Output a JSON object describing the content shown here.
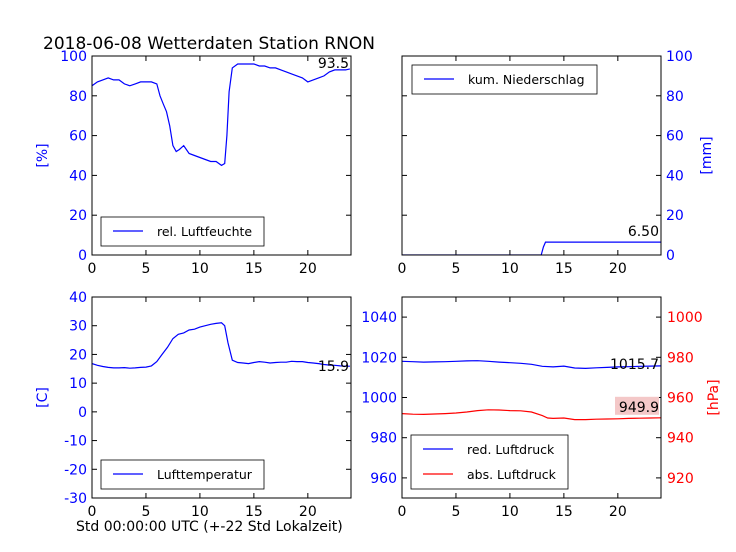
{
  "figure": {
    "title": "2018-06-08 Wetterdaten Station RNON",
    "xlabel": "Std 00:00:00 UTC (+-22 Std Lokalzeit)"
  },
  "colors": {
    "blue": "#0000ff",
    "red": "#ff0000",
    "black": "#000000"
  },
  "chart_data": [
    {
      "type": "line",
      "id": "humidity",
      "ylabel": "[%]",
      "xlim": [
        0,
        24
      ],
      "ylim": [
        0,
        100
      ],
      "xticks": [
        0,
        5,
        10,
        15,
        20
      ],
      "yticks": [
        0,
        20,
        40,
        60,
        80,
        100
      ],
      "legend_position": "lower-center",
      "last_value_label": "93.5",
      "series": [
        {
          "name": "rel. Luftfeuchte",
          "color": "#0000ff",
          "x": [
            0,
            0.5,
            1,
            1.5,
            2,
            2.5,
            3,
            3.5,
            4,
            4.5,
            5,
            5.5,
            6,
            6.3,
            6.6,
            6.9,
            7.2,
            7.5,
            7.8,
            8.1,
            8.5,
            9,
            9.5,
            10,
            10.5,
            11,
            11.5,
            12,
            12.3,
            12.5,
            12.7,
            13,
            13.5,
            14,
            14.5,
            15,
            15.5,
            16,
            16.5,
            17,
            17.5,
            18,
            18.5,
            19,
            19.5,
            20,
            20.5,
            21,
            21.5,
            22,
            22.5,
            23,
            23.5,
            23.9
          ],
          "y": [
            85,
            87,
            88,
            89,
            88,
            88,
            86,
            85,
            86,
            87,
            87,
            87,
            86,
            80,
            76,
            72,
            65,
            55,
            52,
            53,
            55,
            51,
            50,
            49,
            48,
            47,
            47,
            45,
            46,
            60,
            82,
            94,
            96,
            96,
            96,
            96,
            95,
            95,
            94,
            94,
            93,
            92,
            91,
            90,
            89,
            87,
            88,
            89,
            90,
            92,
            93,
            93,
            93,
            93.5
          ]
        }
      ]
    },
    {
      "type": "line",
      "id": "precip",
      "ylabel": "[mm]",
      "xlim": [
        0,
        24
      ],
      "ylim": [
        0,
        100
      ],
      "xticks": [
        0,
        5,
        10,
        15,
        20
      ],
      "yticks": [
        0,
        20,
        40,
        60,
        80,
        100
      ],
      "legend_position": "upper-center",
      "last_value_label": "6.50",
      "series": [
        {
          "name": "kum. Niederschlag",
          "color": "#0000ff",
          "x": [
            0,
            12.9,
            13.1,
            13.3,
            24
          ],
          "y": [
            0,
            0,
            4,
            6.5,
            6.5
          ]
        }
      ]
    },
    {
      "type": "line",
      "id": "temperature",
      "ylabel": "[C]",
      "xlim": [
        0,
        24
      ],
      "ylim": [
        -30,
        40
      ],
      "xticks": [
        0,
        5,
        10,
        15,
        20
      ],
      "yticks": [
        -30,
        -20,
        -10,
        0,
        10,
        20,
        30,
        40
      ],
      "legend_position": "lower-center",
      "last_value_label": "15.9",
      "series": [
        {
          "name": "Lufttemperatur",
          "color": "#0000ff",
          "x": [
            0,
            0.5,
            1,
            1.5,
            2,
            2.5,
            3,
            3.5,
            4,
            4.5,
            5,
            5.5,
            6,
            6.5,
            7,
            7.5,
            8,
            8.5,
            9,
            9.5,
            10,
            10.5,
            11,
            11.5,
            12,
            12.3,
            12.6,
            13,
            13.5,
            14,
            14.5,
            15,
            15.5,
            16,
            16.5,
            17,
            17.5,
            18,
            18.5,
            19,
            19.5,
            20,
            20.5,
            21,
            21.5,
            22,
            22.5,
            23,
            23.5,
            23.9
          ],
          "y": [
            16.8,
            16.2,
            15.8,
            15.5,
            15.3,
            15.3,
            15.4,
            15.2,
            15.3,
            15.5,
            15.6,
            16.0,
            17.5,
            20.0,
            22.5,
            25.5,
            27.0,
            27.5,
            28.5,
            28.8,
            29.5,
            30.0,
            30.5,
            30.8,
            31.0,
            30.0,
            24.0,
            18.0,
            17.2,
            17.0,
            16.8,
            17.2,
            17.5,
            17.3,
            17.0,
            17.2,
            17.3,
            17.3,
            17.6,
            17.5,
            17.5,
            17.2,
            17.0,
            16.8,
            16.5,
            16.3,
            16.2,
            16.0,
            15.9,
            15.9
          ]
        }
      ]
    },
    {
      "type": "line",
      "id": "pressure",
      "ylabel_right": "[hPa]",
      "xlim": [
        0,
        24
      ],
      "ylim_left": [
        950,
        1050
      ],
      "ylim_right": [
        910,
        1010
      ],
      "xticks": [
        0,
        5,
        10,
        15,
        20
      ],
      "yticks_left": [
        960,
        980,
        1000,
        1020,
        1040
      ],
      "yticks_right": [
        920,
        940,
        960,
        980,
        1000
      ],
      "legend_position": "lower-center",
      "last_value_labels": [
        "1015.7",
        "949.9"
      ],
      "series": [
        {
          "name": "red. Luftdruck",
          "color": "#0000ff",
          "axis": "left",
          "x": [
            0,
            1,
            2,
            3,
            4,
            5,
            6,
            7,
            8,
            9,
            10,
            11,
            12,
            13,
            14,
            15,
            16,
            17,
            18,
            19,
            20,
            21,
            22,
            23,
            24
          ],
          "y": [
            1018,
            1017.8,
            1017.6,
            1017.7,
            1017.8,
            1018,
            1018.2,
            1018.3,
            1018.0,
            1017.6,
            1017.3,
            1017.0,
            1016.5,
            1015.5,
            1015.2,
            1015.6,
            1014.7,
            1014.5,
            1014.8,
            1015.0,
            1015.2,
            1015.3,
            1015.5,
            1015.6,
            1015.7
          ]
        },
        {
          "name": "abs. Luftdruck",
          "color": "#ff0000",
          "axis": "right",
          "x": [
            0,
            1,
            2,
            3,
            4,
            5,
            6,
            7,
            8,
            9,
            10,
            11,
            12,
            13,
            13.5,
            14,
            15,
            16,
            17,
            18,
            19,
            20,
            21,
            22,
            23,
            24
          ],
          "y": [
            952.0,
            951.7,
            951.6,
            951.8,
            952.0,
            952.3,
            952.8,
            953.5,
            953.9,
            953.8,
            953.5,
            953.4,
            952.8,
            951.0,
            949.8,
            949.6,
            949.8,
            949.0,
            949.0,
            949.2,
            949.3,
            949.4,
            949.6,
            949.7,
            949.8,
            949.9
          ]
        }
      ]
    }
  ]
}
